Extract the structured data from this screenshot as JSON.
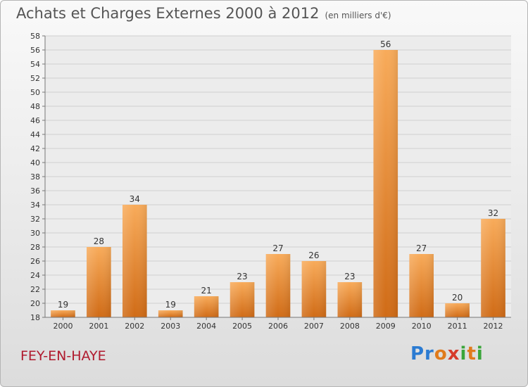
{
  "title": "Achats et Charges Externes 2000 à 2012",
  "subtitle": "(en milliers d'€)",
  "commune": "FEY-EN-HAYE",
  "logo": {
    "text": "Proxiti"
  },
  "colors": {
    "bar_light": "#f8ab5a",
    "bar_dark": "#d06b16",
    "title": "#555555",
    "commune": "#b01a2e"
  },
  "chart_data": {
    "type": "bar",
    "title": "Achats et Charges Externes 2000 à 2012",
    "subtitle": "(en milliers d'€)",
    "xlabel": "",
    "ylabel": "",
    "categories": [
      "2000",
      "2001",
      "2002",
      "2003",
      "2004",
      "2005",
      "2006",
      "2007",
      "2008",
      "2009",
      "2010",
      "2011",
      "2012"
    ],
    "values": [
      19,
      28,
      34,
      19,
      21,
      23,
      27,
      26,
      23,
      56,
      27,
      20,
      32
    ],
    "ylim": [
      18,
      58
    ],
    "yticks": [
      18,
      20,
      22,
      24,
      26,
      28,
      30,
      32,
      34,
      36,
      38,
      40,
      42,
      44,
      46,
      48,
      50,
      52,
      54,
      56,
      58
    ],
    "grid": true,
    "data_labels": true
  }
}
